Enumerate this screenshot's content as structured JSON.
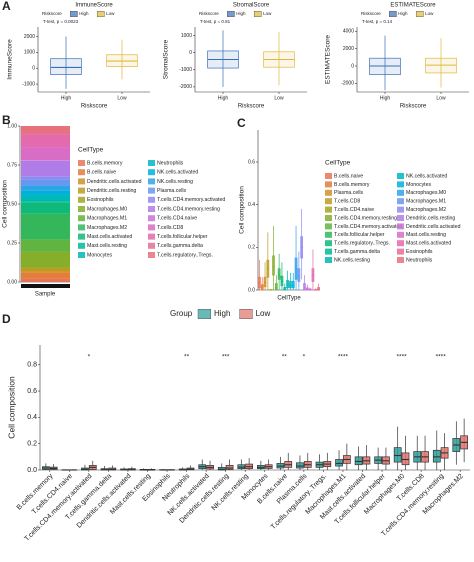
{
  "chart_data": [
    {
      "type": "box",
      "panel": "A",
      "title": "ImmuneScore",
      "annotation": "T-test, p = 0.0023",
      "legend": "top",
      "legend_title": "Riskscore",
      "xlabel": "Riskscore",
      "ylabel": "ImmuneScore",
      "show_xtick_labels": true,
      "categories": [
        "High",
        "Low"
      ],
      "colors": [
        "#3a6fb8",
        "#e0b93a"
      ],
      "q1": [
        -400,
        100
      ],
      "median": [
        50,
        450
      ],
      "q3": [
        600,
        850
      ],
      "whisker_low": [
        -1300,
        -700
      ],
      "whisker_high": [
        2000,
        1800
      ],
      "ylim": [
        -1500,
        2600
      ],
      "yticks": [
        -1000,
        0,
        1000,
        2000
      ]
    },
    {
      "type": "box",
      "title": "StromalScore",
      "annotation": "T-test, p = 0.81",
      "legend": "top",
      "legend_title": "Riskscore",
      "xlabel": "Riskscore",
      "ylabel": "StromalScore",
      "show_xtick_labels": true,
      "categories": [
        "High",
        "Low"
      ],
      "colors": [
        "#3a6fb8",
        "#e0b93a"
      ],
      "q1": [
        -900,
        -850
      ],
      "median": [
        -400,
        -400
      ],
      "q3": [
        100,
        50
      ],
      "whisker_low": [
        -2000,
        -1900
      ],
      "whisker_high": [
        1300,
        1200
      ],
      "ylim": [
        -2300,
        1500
      ],
      "yticks": [
        -2000,
        -1000,
        0,
        1000
      ]
    },
    {
      "type": "box",
      "title": "ESTIMATEScore",
      "annotation": "T-test, p = 0.14",
      "legend": "top",
      "legend_title": "Riskscore",
      "xlabel": "Riskscore",
      "ylabel": "ESTIMATEScore",
      "show_xtick_labels": true,
      "categories": [
        "High",
        "Low"
      ],
      "colors": [
        "#3a6fb8",
        "#e0b93a"
      ],
      "q1": [
        -1000,
        -800
      ],
      "median": [
        0,
        100
      ],
      "q3": [
        900,
        900
      ],
      "whisker_low": [
        -2800,
        -2500
      ],
      "whisker_high": [
        3500,
        3200
      ],
      "ylim": [
        -3000,
        4500
      ],
      "yticks": [
        -2000,
        0,
        2000,
        4000
      ]
    },
    {
      "type": "stacked_bar",
      "panel": "B",
      "legend": "right",
      "legend_title": "CellType",
      "xlabel": "Sample",
      "ylabel": "Cell composition",
      "categories": [
        "B.cells.memory",
        "B.cells.naive",
        "Dendritic.cells.activated",
        "Dendritic.cells.resting",
        "Eosinophils",
        "Macrophages.M0",
        "Macrophages.M1",
        "Macrophages.M2",
        "Mast.cells.activated",
        "Mast.cells.resting",
        "Monocytes",
        "Neutrophils",
        "NK.cells.activated",
        "NK.cells.resting",
        "Plasma.cells",
        "T.cells.CD4.memory.activated",
        "T.cells.CD4.memory.resting",
        "T.cells.CD4.naive",
        "T.cells.CD8",
        "T.cells.follicular.helper",
        "T.cells.gamma.delta",
        "T.cells.regulatory..Tregs."
      ],
      "values": [
        0.02,
        0.04,
        0.01,
        0.02,
        0.003,
        0.1,
        0.08,
        0.165,
        0.07,
        0.01,
        0.03,
        0.01,
        0.03,
        0.03,
        0.04,
        0.02,
        0.1,
        0.002,
        0.085,
        0.08,
        0.01,
        0.045
      ],
      "colors": [
        "#e8735a",
        "#e27d3a",
        "#d18f2a",
        "#bb9c1f",
        "#a3a61f",
        "#86ae2b",
        "#61b43f",
        "#33b75a",
        "#0fb97a",
        "#00ba97",
        "#00b9b0",
        "#00b6c7",
        "#00afda",
        "#2ea4e8",
        "#6797f0",
        "#9089f0",
        "#b07de8",
        "#c873d9",
        "#d96cc5",
        "#e36aad",
        "#e76d95",
        "#e7717c"
      ],
      "ylim": [
        0,
        1
      ],
      "yticks": [
        {
          "value": 0,
          "label": "0.00"
        },
        {
          "value": 0.25,
          "label": "0.25"
        },
        {
          "value": 0.5,
          "label": "0.50"
        },
        {
          "value": 0.75,
          "label": "0.75"
        },
        {
          "value": 1,
          "label": "1.00"
        }
      ]
    },
    {
      "type": "box",
      "panel": "C",
      "legend": "right",
      "legend_title": "CellType",
      "xlabel": "CellType",
      "ylabel": "Cell composition",
      "show_xtick_labels": false,
      "categories": [
        "B.cells.naive",
        "B.cells.memory",
        "Plasma.cells",
        "T.cells.CD8",
        "T.cells.CD4.naive",
        "T.cells.CD4.memory.resting",
        "T.cells.CD4.memory.activated",
        "T.cells.follicular.helper",
        "T.cells.regulatory..Tregs.",
        "T.cells.gamma.delta",
        "NK.cells.resting",
        "NK.cells.activated",
        "Monocytes",
        "Macrophages.M0",
        "Macrophages.M1",
        "Macrophages.M2",
        "Dendritic.cells.resting",
        "Dendritic.cells.activated",
        "Mast.cells.resting",
        "Mast.cells.activated",
        "Eosinophils",
        "Neutrophils"
      ],
      "colors": [
        "#e8735a",
        "#e27d3a",
        "#d18f2a",
        "#bb9c1f",
        "#a3a61f",
        "#86ae2b",
        "#61b43f",
        "#33b75a",
        "#0fb97a",
        "#00ba97",
        "#00b9b0",
        "#00b6c7",
        "#00afda",
        "#2ea4e8",
        "#6797f0",
        "#9089f0",
        "#b07de8",
        "#c873d9",
        "#d96cc5",
        "#e36aad",
        "#e76d95",
        "#e7717c"
      ],
      "q1": [
        0.01,
        0,
        0.015,
        0.06,
        0,
        0.07,
        0,
        0.05,
        0.02,
        0,
        0.01,
        0.01,
        0.01,
        0.05,
        0.04,
        0.15,
        0,
        0,
        0,
        0.04,
        0,
        0
      ],
      "median": [
        0.035,
        0.01,
        0.035,
        0.1,
        0,
        0.11,
        0.01,
        0.07,
        0.04,
        0.004,
        0.025,
        0.02,
        0.022,
        0.1,
        0.065,
        0.2,
        0.01,
        0.002,
        0,
        0.07,
        0,
        0.004
      ],
      "q3": [
        0.06,
        0.025,
        0.06,
        0.14,
        0.002,
        0.16,
        0.03,
        0.1,
        0.065,
        0.012,
        0.045,
        0.04,
        0.04,
        0.15,
        0.1,
        0.25,
        0.03,
        0.01,
        0.005,
        0.1,
        0.003,
        0.012
      ],
      "whisker_low": [
        0,
        0,
        0,
        0,
        0,
        0,
        0,
        0,
        0,
        0,
        0,
        0,
        0,
        0,
        0,
        0.05,
        0,
        0,
        0,
        0,
        0,
        0
      ],
      "whisker_high": [
        0.14,
        0.06,
        0.13,
        0.27,
        0.005,
        0.3,
        0.07,
        0.17,
        0.13,
        0.03,
        0.09,
        0.08,
        0.08,
        0.3,
        0.18,
        0.38,
        0.07,
        0.025,
        0.012,
        0.19,
        0.008,
        0.03
      ],
      "ylim": [
        0,
        0.75
      ],
      "yticks": [
        {
          "value": 0,
          "label": "0.0"
        },
        0.2,
        0.4,
        0.6
      ]
    },
    {
      "type": "grouped_box",
      "panel": "D",
      "legend": "top",
      "legend_title": "Group",
      "ylabel": "Cell composition",
      "categories": [
        "B.cells.memory",
        "T.cells.CD4.naive",
        "T.cells.CD4.memory.activated",
        "T.cells.gamma.delta",
        "Dendritic.cells.activated",
        "Mast.cells.resting",
        "Eosinophils",
        "Neutrophils",
        "NK.cells.activated",
        "Dendritic.cells.resting",
        "NK.cells.resting",
        "Monocytes",
        "B.cells.naive",
        "Plasma.cells",
        "T.cells.regulatory..Tregs.",
        "Macrophages.M1",
        "Mast.cells.activated",
        "T.cells.follicular.helper",
        "Macrophages.M0",
        "T.cells.CD8",
        "T.cells.CD4.memory.resting",
        "Macrophages.M2"
      ],
      "annotations": [
        null,
        null,
        "*",
        null,
        null,
        null,
        null,
        "**",
        null,
        "***",
        null,
        null,
        "**",
        "*",
        null,
        "****",
        null,
        null,
        "****",
        null,
        "****",
        null
      ],
      "series": [
        {
          "name": "High",
          "color": "#2a9d98",
          "q1": [
            0.005,
            0,
            0,
            0,
            0,
            0,
            0,
            0,
            0.01,
            0,
            0.01,
            0.01,
            0.015,
            0.015,
            0.02,
            0.03,
            0.04,
            0.05,
            0.06,
            0.06,
            0.06,
            0.14
          ],
          "median": [
            0.015,
            0,
            0.005,
            0.003,
            0.002,
            0,
            0,
            0.002,
            0.025,
            0.005,
            0.022,
            0.02,
            0.03,
            0.03,
            0.04,
            0.05,
            0.065,
            0.075,
            0.11,
            0.1,
            0.1,
            0.19
          ],
          "q3": [
            0.025,
            0.002,
            0.015,
            0.01,
            0.008,
            0.005,
            0.003,
            0.008,
            0.04,
            0.02,
            0.04,
            0.035,
            0.05,
            0.055,
            0.06,
            0.08,
            0.1,
            0.1,
            0.17,
            0.14,
            0.15,
            0.24
          ],
          "whisker_low": [
            0,
            0,
            0,
            0,
            0,
            0,
            0,
            0,
            0,
            0,
            0,
            0,
            0,
            0,
            0,
            0,
            0,
            0,
            0,
            0,
            0,
            0.04
          ],
          "whisker_high": [
            0.05,
            0.005,
            0.04,
            0.03,
            0.02,
            0.012,
            0.008,
            0.02,
            0.08,
            0.05,
            0.08,
            0.07,
            0.1,
            0.11,
            0.12,
            0.15,
            0.18,
            0.17,
            0.33,
            0.26,
            0.3,
            0.37
          ]
        },
        {
          "name": "Low",
          "color": "#e0716a",
          "q1": [
            0.005,
            0,
            0.005,
            0,
            0,
            0,
            0,
            0.002,
            0.008,
            0.005,
            0.01,
            0.012,
            0.02,
            0.02,
            0.025,
            0.05,
            0.045,
            0.045,
            0.04,
            0.06,
            0.09,
            0.16
          ],
          "median": [
            0.012,
            0,
            0.02,
            0.005,
            0.003,
            0,
            0,
            0.006,
            0.02,
            0.015,
            0.025,
            0.025,
            0.04,
            0.04,
            0.045,
            0.08,
            0.07,
            0.07,
            0.08,
            0.1,
            0.13,
            0.21
          ],
          "q3": [
            0.022,
            0.002,
            0.035,
            0.015,
            0.01,
            0.005,
            0.003,
            0.015,
            0.035,
            0.035,
            0.045,
            0.04,
            0.065,
            0.065,
            0.065,
            0.11,
            0.1,
            0.1,
            0.13,
            0.14,
            0.17,
            0.26
          ],
          "whisker_low": [
            0,
            0,
            0,
            0,
            0,
            0,
            0,
            0,
            0,
            0,
            0,
            0,
            0,
            0,
            0,
            0,
            0,
            0,
            0,
            0,
            0,
            0.06
          ],
          "whisker_high": [
            0.045,
            0.005,
            0.07,
            0.035,
            0.025,
            0.012,
            0.008,
            0.035,
            0.07,
            0.08,
            0.09,
            0.08,
            0.13,
            0.13,
            0.13,
            0.2,
            0.19,
            0.17,
            0.26,
            0.26,
            0.28,
            0.39
          ]
        }
      ],
      "ylim": [
        0,
        0.95
      ],
      "yticks": [
        {
          "value": 0,
          "label": "0.0"
        },
        0.2,
        0.4,
        0.6,
        0.8
      ]
    }
  ]
}
